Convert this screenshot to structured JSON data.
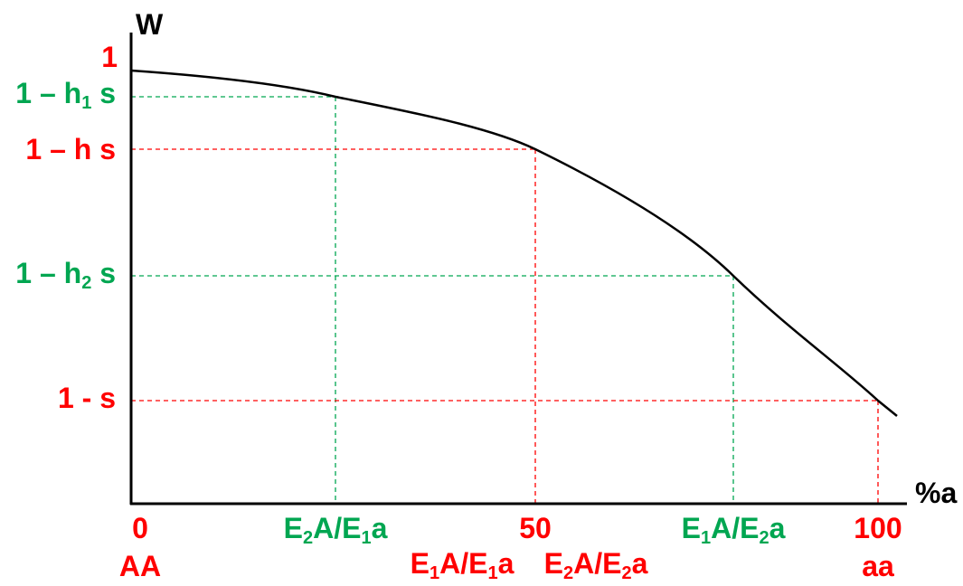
{
  "colors": {
    "red": "#ff0000",
    "green": "#00a651",
    "axis": "#000000"
  },
  "axes": {
    "y_label": "W",
    "x_label": "%a"
  },
  "y_labels": {
    "one": "1",
    "h1": {
      "pre": "1 – h",
      "sub": "1",
      "post": " s"
    },
    "h": "1 – h s",
    "h2": {
      "pre": "1 – h",
      "sub": "2",
      "post": " s"
    },
    "s": "1 - s"
  },
  "x_labels": {
    "zero": "0",
    "aa_hom": "AA",
    "fifty": "50",
    "hundred": "100",
    "aa_rec": "aa",
    "e2a_e1a": {
      "a1": "E",
      "s1": "2",
      "a2": "A/E",
      "s2": "1",
      "a3": "a"
    },
    "e1a_e1a": {
      "a1": "E",
      "s1": "1",
      "a2": "A/E",
      "s2": "1",
      "a3": "a"
    },
    "e2a_e2a": {
      "a1": "E",
      "s1": "2",
      "a2": "A/E",
      "s2": "2",
      "a3": "a"
    },
    "e1a_e2a": {
      "a1": "E",
      "s1": "1",
      "a2": "A/E",
      "s2": "2",
      "a3": "a"
    }
  }
}
